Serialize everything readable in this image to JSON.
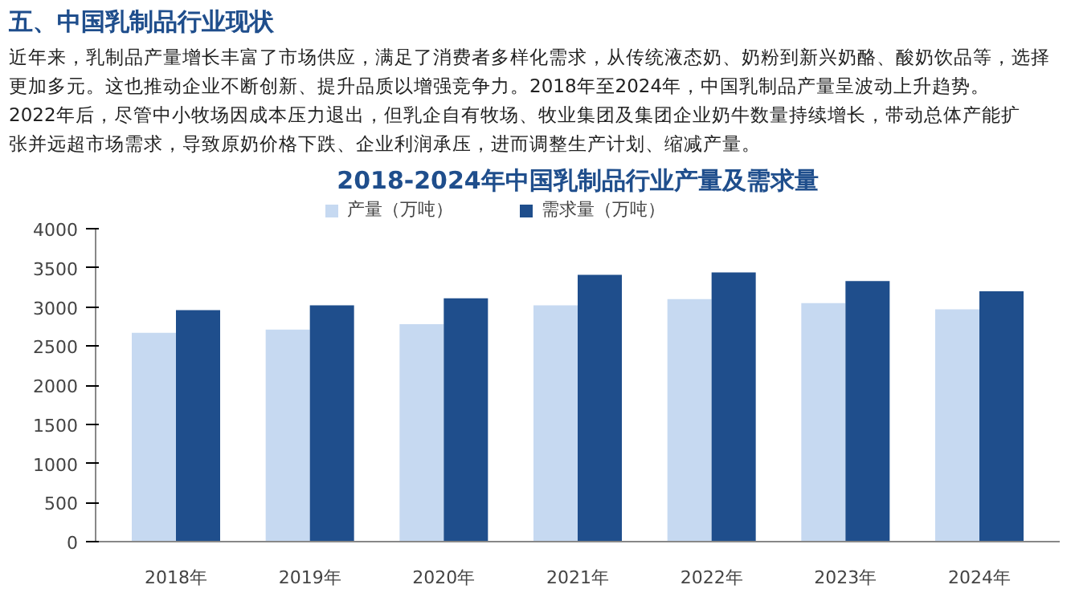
{
  "chart_data": {
    "type": "bar",
    "title": "2018-2024年中国乳制品行业产量及需求量",
    "annotations": [
      "五、中国乳制品行业现状",
      "近年来，乳制品产量增长丰富了市场供应，满足了消费者多样化需求，从传统液态奶、奶粉到新兴奶酪、酸奶饮品等，选择更加多元。这也推动企业不断创新、提升品质以增强竞争力。2018年至2024年，中国乳制品产量呈波动上升趋势。2022年后，尽管中小牧场因成本压力退出，但乳企自有牧场、牧业集团及集团企业奶牛数量持续增长，带动总体产能扩张并远超市场需求，导致原奶价格下跌、企业利润承压，进而调整生产计划、缩减产量。"
    ],
    "categories": [
      "2018年",
      "2019年",
      "2020年",
      "2021年",
      "2022年",
      "2023年",
      "2024年"
    ],
    "series": [
      {
        "name": "产量（万吨）",
        "color": "#c6d9f1",
        "values": [
          2670,
          2710,
          2780,
          3020,
          3100,
          3050,
          2970
        ]
      },
      {
        "name": "需求量（万吨）",
        "color": "#1f4e8c",
        "values": [
          2960,
          3020,
          3110,
          3410,
          3440,
          3330,
          3200
        ]
      }
    ],
    "ylim": [
      0,
      4000
    ],
    "yticks": [
      0,
      500,
      1000,
      1500,
      2000,
      2500,
      3000,
      3500,
      4000
    ],
    "grid": false,
    "legend": "top"
  }
}
